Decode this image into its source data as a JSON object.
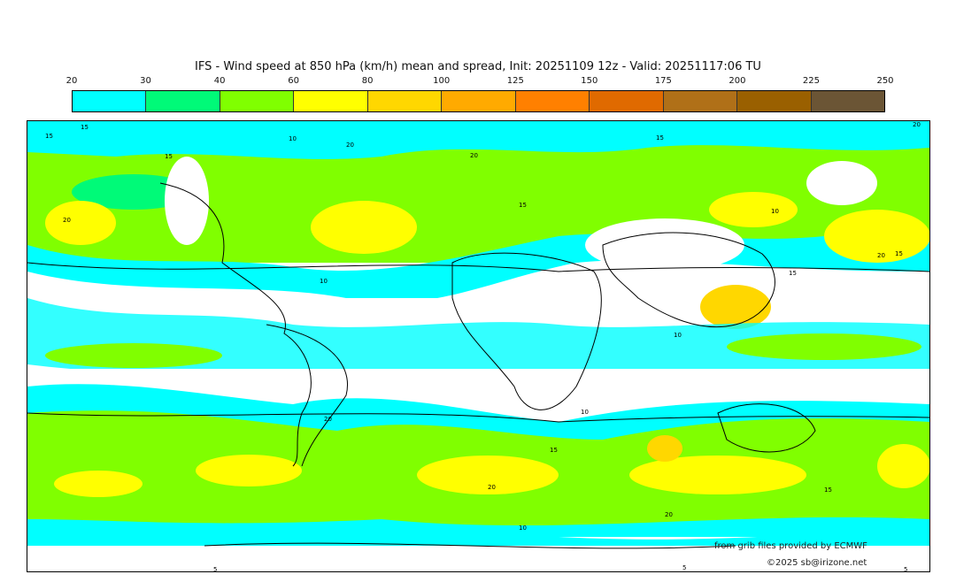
{
  "title": "IFS - Wind speed at 850 hPa (km/h) mean and spread, Init: 20251109 12z - Valid: 20251117:06 TU",
  "colorbar": {
    "ticks": [
      "20",
      "30",
      "40",
      "60",
      "80",
      "100",
      "125",
      "150",
      "175",
      "200",
      "225",
      "250"
    ],
    "colors": [
      "#00ffff",
      "#00fa78",
      "#80ff00",
      "#ffff00",
      "#ffd700",
      "#ffaa00",
      "#ff8000",
      "#e06a00",
      "#b07018",
      "#9a6000",
      "#6b5535"
    ]
  },
  "map": {
    "contour_labels": [
      "15",
      "15",
      "15",
      "10",
      "20",
      "20",
      "15",
      "20",
      "10",
      "15",
      "20",
      "15",
      "10",
      "15",
      "20",
      "20",
      "10",
      "15",
      "20",
      "20",
      "15",
      "10",
      "10",
      "5",
      "5",
      "5"
    ]
  },
  "credits": {
    "source": "from grib files provided by ECMWF",
    "copyright": "©2025 sb@irizone.net"
  }
}
